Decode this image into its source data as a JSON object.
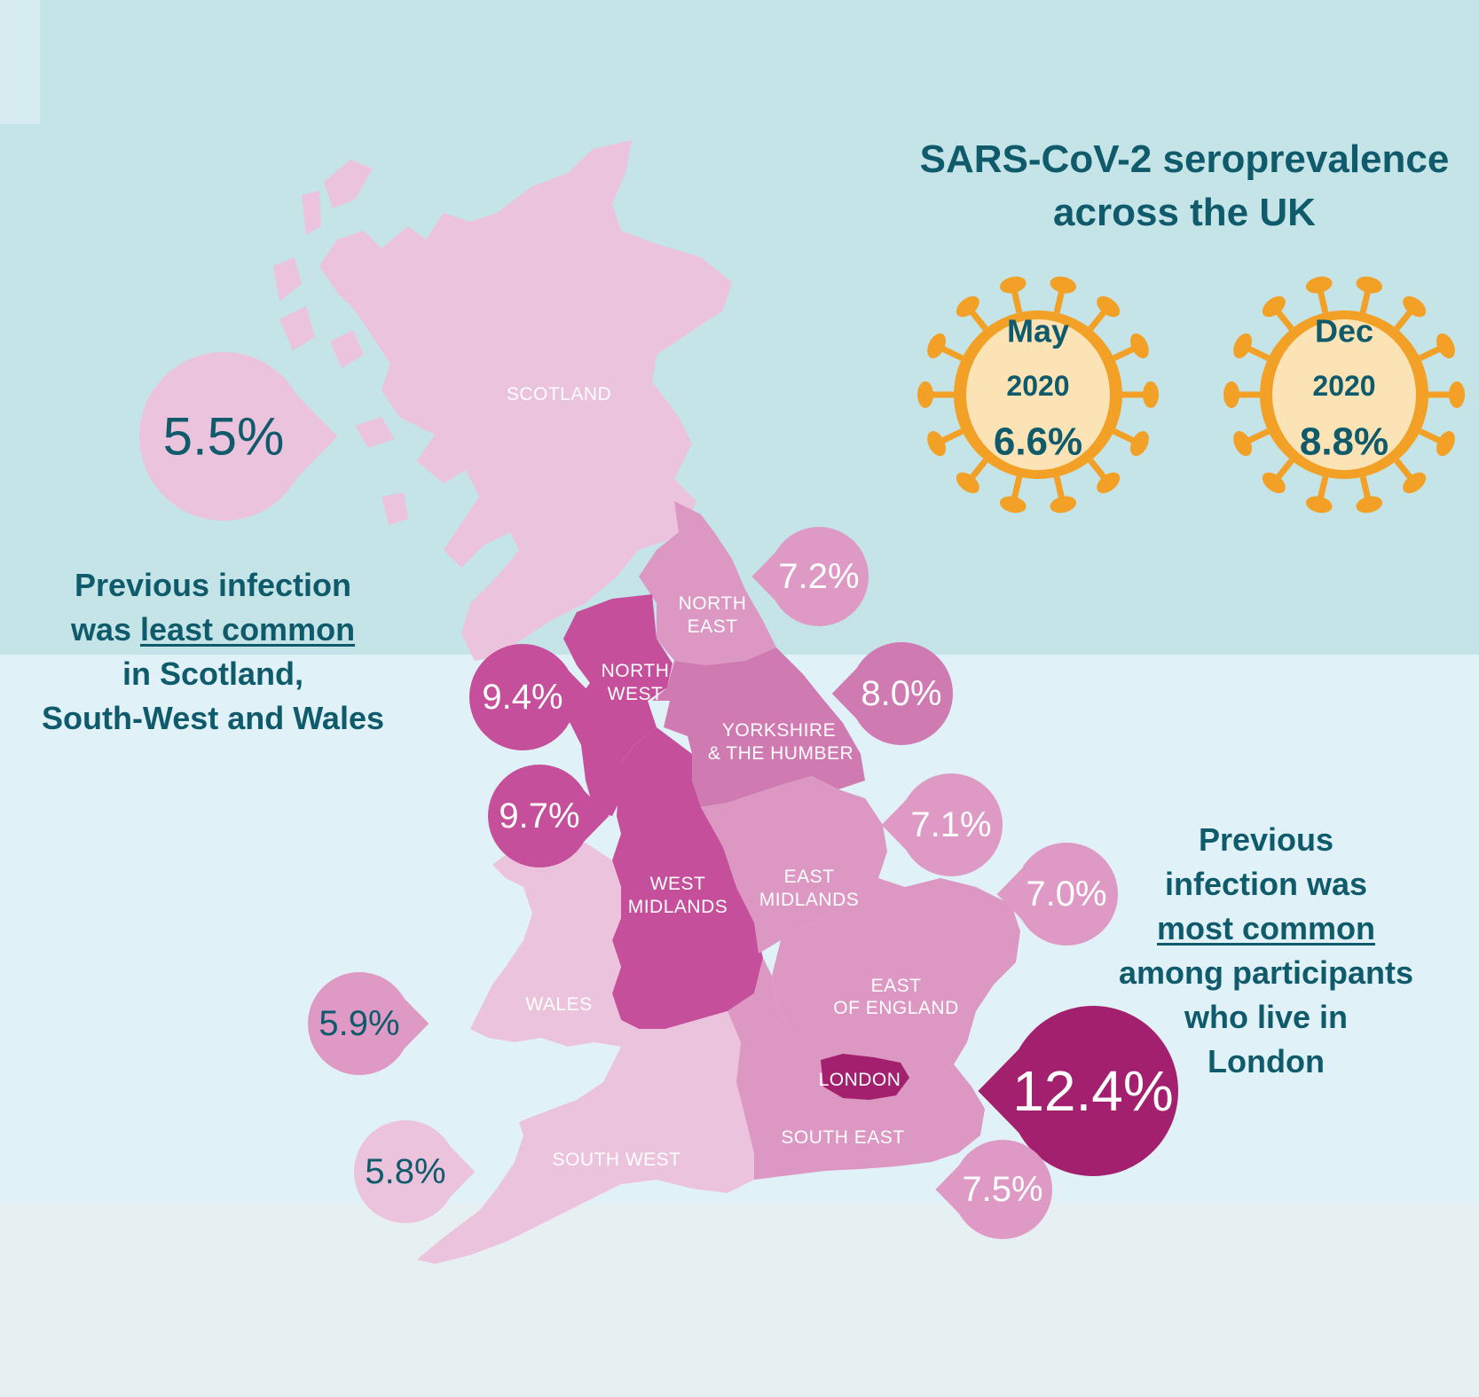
{
  "title": "SARS-CoV-2 seroprevalence across the UK",
  "national": [
    {
      "month": "May",
      "year": "2020",
      "value": "6.6%"
    },
    {
      "month": "Dec",
      "year": "2020",
      "value": "8.8%"
    }
  ],
  "regions": {
    "scotland": {
      "label": "SCOTLAND",
      "value": "5.5%"
    },
    "north_east": {
      "label_line1": "NORTH",
      "label_line2": "EAST",
      "value": "7.2%"
    },
    "north_west": {
      "label_line1": "NORTH",
      "label_line2": "WEST",
      "value": "9.4%"
    },
    "yorkshire": {
      "label_line1": "YORKSHIRE",
      "label_line2": "& THE HUMBER",
      "value": "8.0%"
    },
    "west_midlands": {
      "label_line1": "WEST",
      "label_line2": "MIDLANDS",
      "value": "9.7%"
    },
    "east_midlands": {
      "label_line1": "EAST",
      "label_line2": "MIDLANDS",
      "value": "7.1%"
    },
    "east_of_england": {
      "label_line1": "EAST",
      "label_line2": "OF ENGLAND",
      "value": "7.0%"
    },
    "wales": {
      "label": "WALES",
      "value": "5.9%"
    },
    "south_west": {
      "label": "SOUTH WEST",
      "value": "5.8%"
    },
    "london": {
      "label": "LONDON",
      "value": "12.4%"
    },
    "south_east": {
      "label": "SOUTH EAST",
      "value": "7.5%"
    }
  },
  "notes": {
    "least": {
      "line1": "Previous infection",
      "line2_prefix": "was ",
      "line2_underlined": "least common",
      "line3": "in Scotland,",
      "line4": "South-West and Wales"
    },
    "most": {
      "line1": "Previous",
      "line2": "infection was",
      "line3_underlined": "most common",
      "line4": "among participants",
      "line5": "who live in",
      "line6": "London"
    }
  },
  "colors": {
    "light_pink": "#ecc3dd",
    "mid_pink": "#dc97c3",
    "pin_pink": "#de9ac4",
    "yorkshire": "#d07ab2",
    "magenta": "#c64f9b",
    "london": "#a3206f",
    "text_teal": "#0f5a6b",
    "virus_orange": "#f2a026",
    "virus_body": "#fbe3b5"
  }
}
